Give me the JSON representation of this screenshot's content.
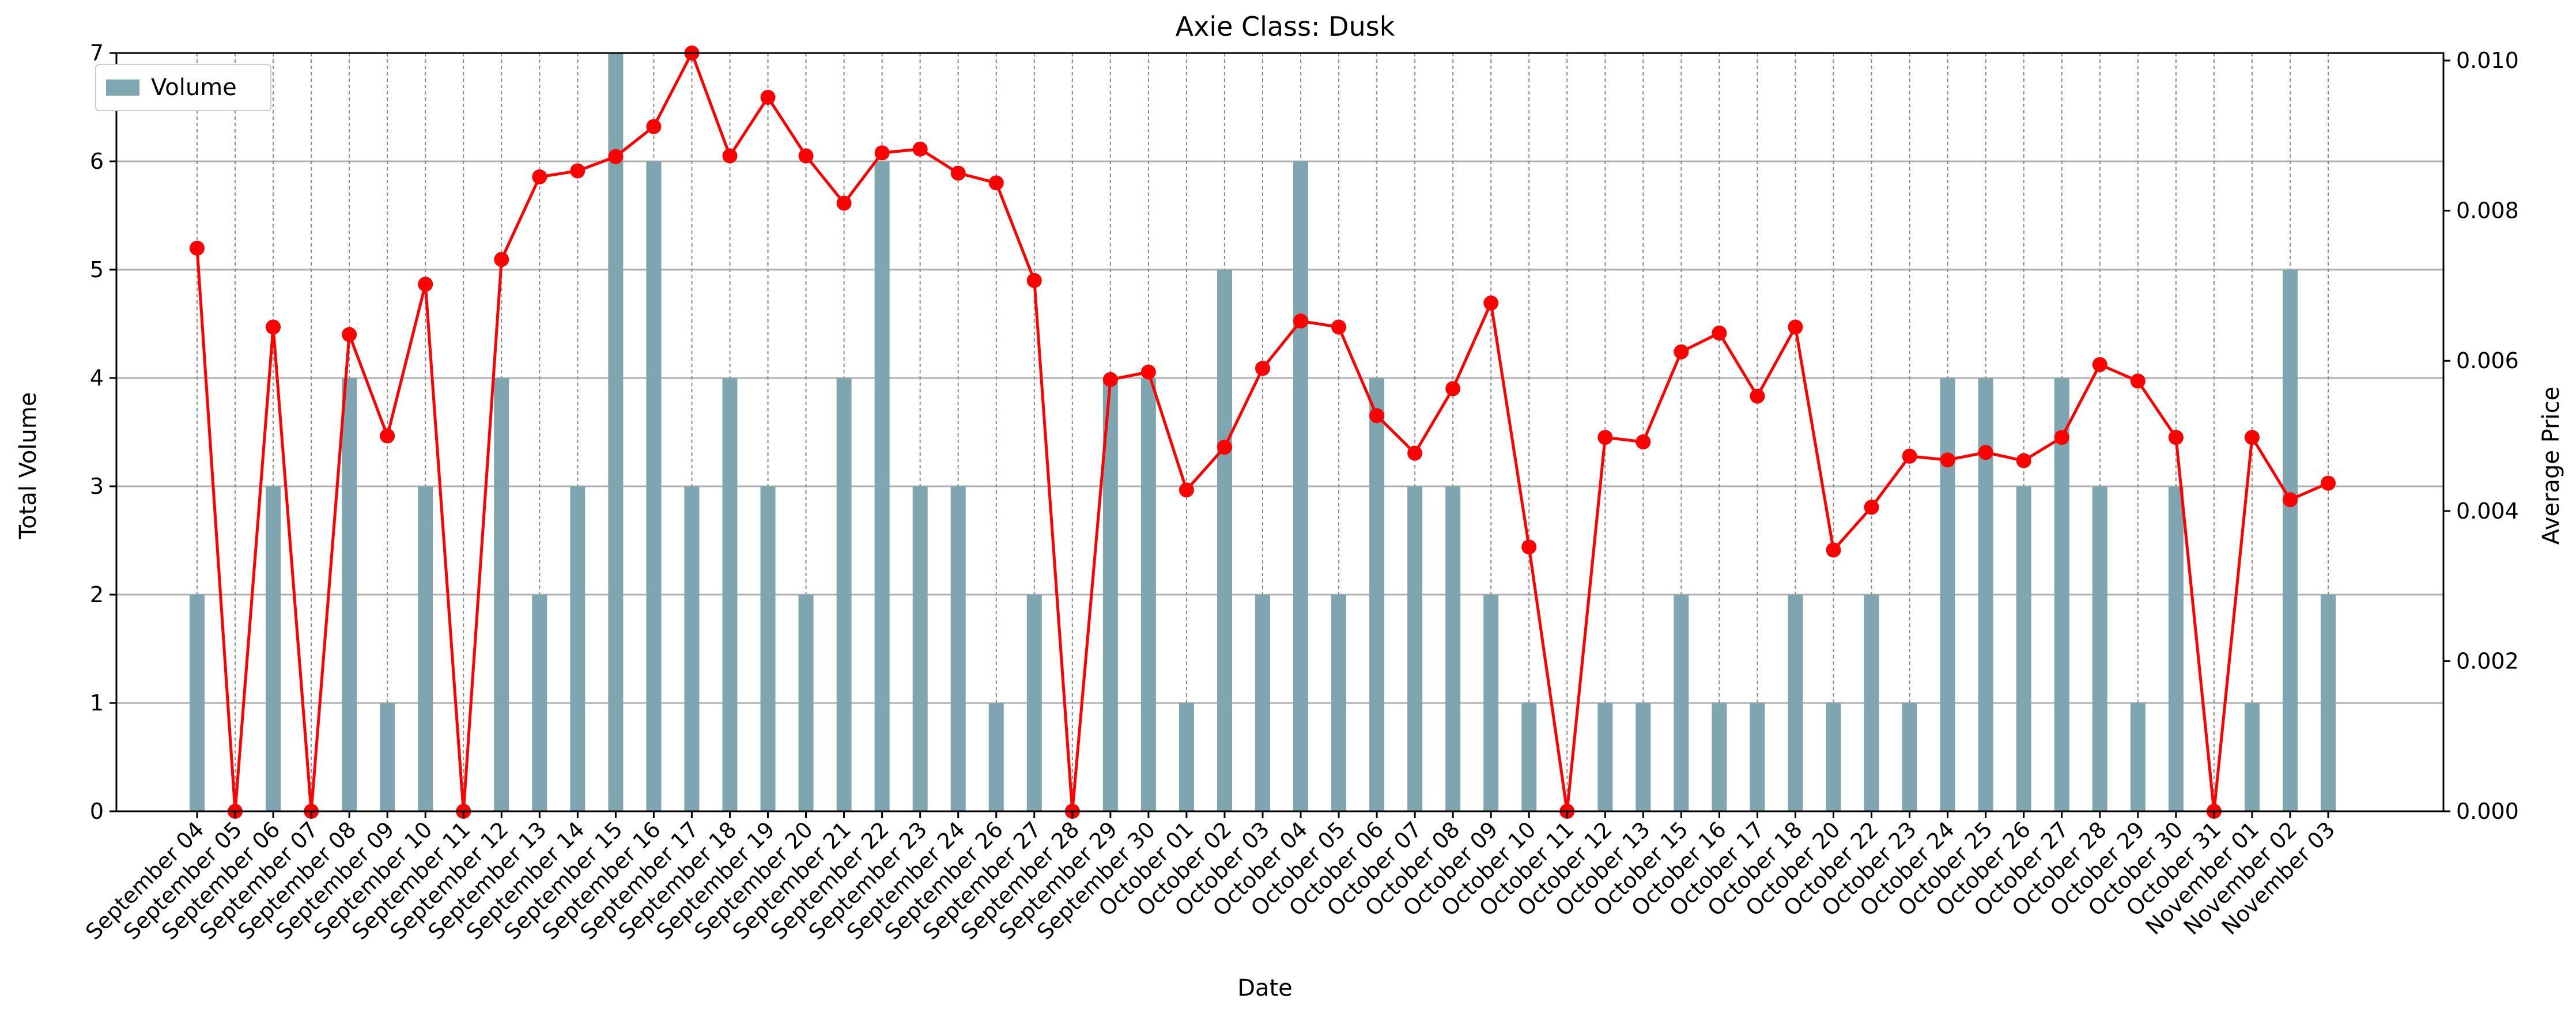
{
  "chart_data": {
    "type": "bar+line",
    "title": "Axie Class: Dusk",
    "xlabel": "Date",
    "ylabel_left": "Total Volume",
    "ylabel_right": "Average Price",
    "ylim_left": [
      0,
      7
    ],
    "ylim_right": [
      0,
      0.0101
    ],
    "yticks_left": [
      "0",
      "1",
      "2",
      "3",
      "4",
      "5",
      "6",
      "7"
    ],
    "yticks_right": [
      "0.000",
      "0.002",
      "0.004",
      "0.006",
      "0.008",
      "0.010"
    ],
    "grid": "horizontal lines at left-axis ticks; dashed vertical lines at each date",
    "legend_position": "upper-left",
    "categories": [
      "September 04",
      "September 05",
      "September 06",
      "September 07",
      "September 08",
      "September 09",
      "September 10",
      "September 11",
      "September 12",
      "September 13",
      "September 14",
      "September 15",
      "September 16",
      "September 17",
      "September 18",
      "September 19",
      "September 20",
      "September 21",
      "September 22",
      "September 23",
      "September 24",
      "September 26",
      "September 27",
      "September 28",
      "September 29",
      "September 30",
      "October 01",
      "October 02",
      "October 03",
      "October 04",
      "October 05",
      "October 06",
      "October 07",
      "October 08",
      "October 09",
      "October 10",
      "October 11",
      "October 12",
      "October 13",
      "October 15",
      "October 16",
      "October 17",
      "October 18",
      "October 20",
      "October 22",
      "October 23",
      "October 24",
      "October 25",
      "October 26",
      "October 27",
      "October 28",
      "October 29",
      "October 30",
      "October 31",
      "November 01",
      "November 02",
      "November 03"
    ],
    "series": [
      {
        "name": "Volume",
        "type": "bar",
        "axis": "left",
        "color": "#7fa6b0",
        "values": [
          2,
          0,
          3,
          0,
          4,
          1,
          3,
          0,
          4,
          2,
          3,
          7,
          6,
          3,
          4,
          3,
          2,
          4,
          6,
          3,
          3,
          1,
          2,
          0,
          4,
          4,
          1,
          5,
          2,
          6,
          2,
          4,
          3,
          3,
          2,
          1,
          0,
          1,
          1,
          2,
          1,
          1,
          2,
          1,
          2,
          1,
          4,
          4,
          3,
          4,
          3,
          1,
          3,
          0,
          1,
          5,
          2
        ]
      },
      {
        "type": "line",
        "axis": "right",
        "color": "#ff0000",
        "values": [
          0.0075,
          0.0,
          0.00645,
          0.0,
          0.00635,
          0.005,
          0.00702,
          0.0,
          0.00735,
          0.00845,
          0.00853,
          0.00872,
          0.00912,
          0.0101,
          0.00873,
          0.00951,
          0.00873,
          0.0081,
          0.00877,
          0.00882,
          0.0085,
          0.00837,
          0.00707,
          0.0,
          0.00575,
          0.00585,
          0.00428,
          0.00485,
          0.0059,
          0.00653,
          0.00645,
          0.00527,
          0.00477,
          0.00563,
          0.00677,
          0.00352,
          0.0,
          0.00498,
          0.00492,
          0.00612,
          0.00637,
          0.00553,
          0.00645,
          0.00348,
          0.00405,
          0.00473,
          0.00468,
          0.00478,
          0.00467,
          0.00498,
          0.00595,
          0.00573,
          0.00498,
          0.0,
          0.00498,
          0.00415,
          0.00437
        ]
      }
    ]
  }
}
